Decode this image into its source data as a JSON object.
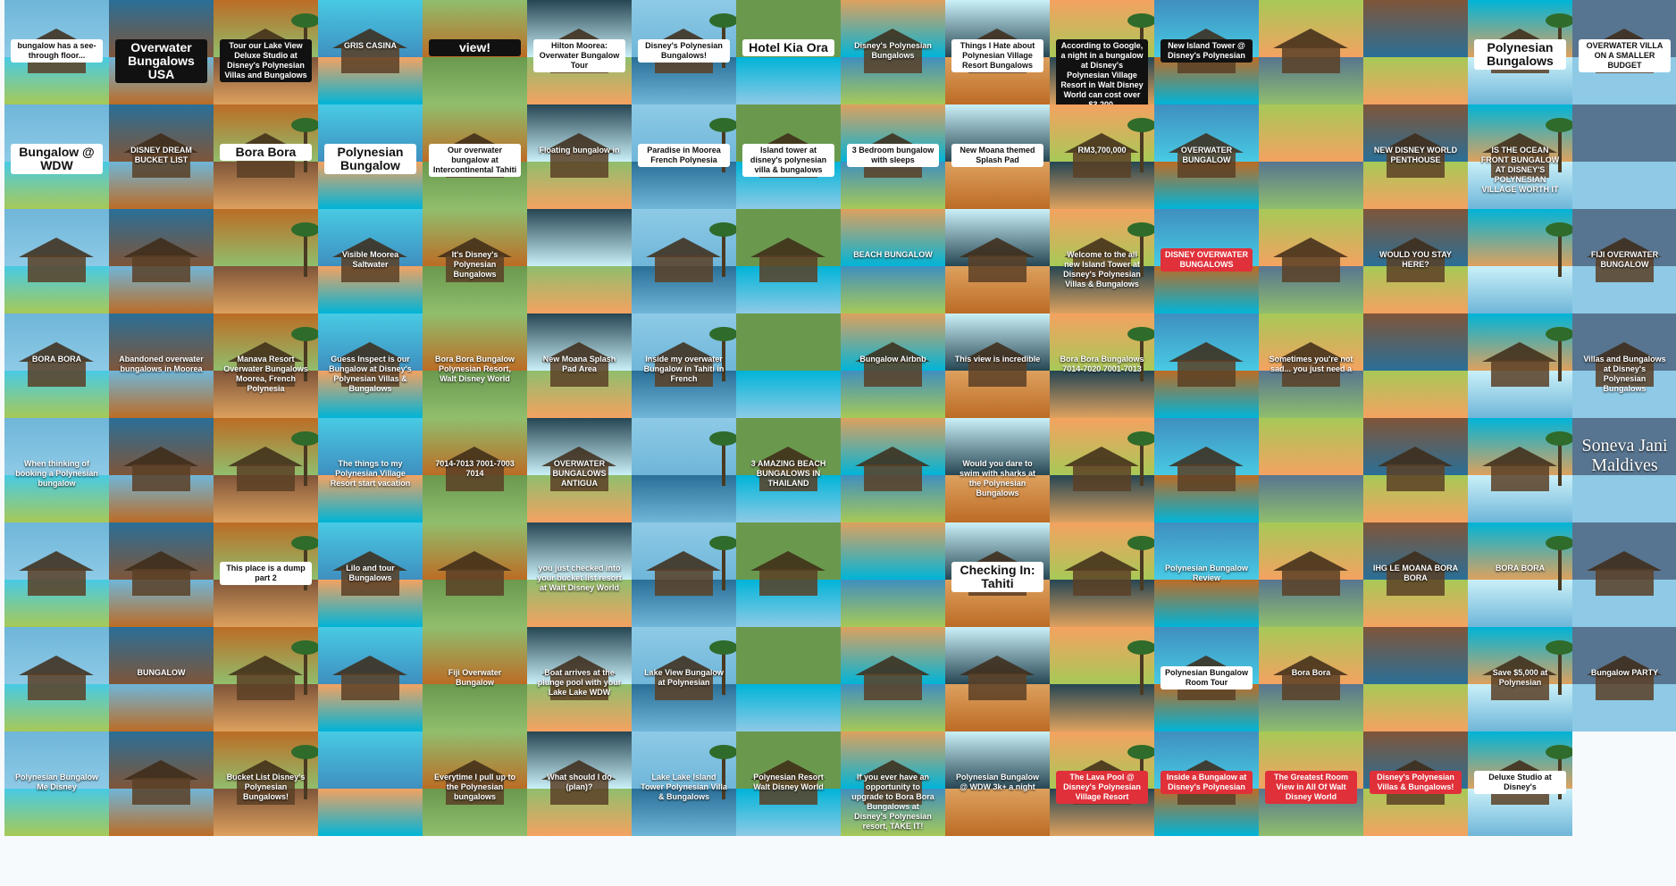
{
  "palette": [
    "#6fb6d9",
    "#3f8fbf",
    "#8ecae6",
    "#2a6f97",
    "#a7c957",
    "#6a994e",
    "#bc6c25",
    "#7f5539",
    "#dda15e",
    "#48cae4",
    "#00b4d8",
    "#caf0f8",
    "#90be6d",
    "#577590",
    "#f4a261",
    "#264653"
  ],
  "tiles": [
    {
      "caption": "bungalow has a see-through floor...",
      "style": "cap-white"
    },
    {
      "caption": "Overwater Bungalows USA",
      "style": "cap-black"
    },
    {
      "caption": "Tour our Lake View Deluxe Studio at Disney's Polynesian Villas and Bungalows",
      "style": "cap-black"
    },
    {
      "caption": "GRIS CASINA",
      "style": "cap-plain"
    },
    {
      "caption": "view!",
      "style": "cap-black"
    },
    {
      "caption": "Hilton Moorea: Overwater Bungalow Tour",
      "style": "cap-white"
    },
    {
      "caption": "Disney's Polynesian Bungalows!",
      "style": "cap-white"
    },
    {
      "caption": "Hotel Kia Ora",
      "style": "cap-white"
    },
    {
      "caption": "Disney's Polynesian Bungalows",
      "style": "cap-plain"
    },
    {
      "caption": "Things I Hate about Polynesian Village Resort Bungalows",
      "style": "cap-white"
    },
    {
      "caption": "According to Google, a night in a bungalow at Disney's Polynesian Village Resort in Walt Disney World can cost over $3,200.",
      "style": "cap-black"
    },
    {
      "caption": "New Island Tower @ Disney's Polynesian",
      "style": "cap-black"
    },
    {
      "caption": "",
      "style": "cap-plain"
    },
    {
      "caption": "",
      "style": "cap-plain"
    },
    {
      "caption": "Polynesian Bungalows",
      "style": "cap-white"
    },
    {
      "caption": "OVERWATER VILLA ON A SMALLER BUDGET",
      "style": "cap-white"
    },
    {
      "caption": "Bungalow @ WDW",
      "style": "cap-white"
    },
    {
      "caption": "DISNEY DREAM BUCKET LIST",
      "style": "cap-plain"
    },
    {
      "caption": "Bora Bora",
      "style": "cap-white"
    },
    {
      "caption": "Polynesian Bungalow",
      "style": "cap-white"
    },
    {
      "caption": "Our overwater bungalow at Intercontinental Tahiti",
      "style": "cap-white"
    },
    {
      "caption": "Floating bungalow in",
      "style": "cap-plain"
    },
    {
      "caption": "Paradise in Moorea French Polynesia",
      "style": "cap-white"
    },
    {
      "caption": "Island tower at disney's polynesian villa & bungalows",
      "style": "cap-white"
    },
    {
      "caption": "3 Bedroom bungalow with sleeps",
      "style": "cap-white"
    },
    {
      "caption": "New Moana themed Splash Pad",
      "style": "cap-white"
    },
    {
      "caption": "RM3,700,000",
      "style": "cap-plain"
    },
    {
      "caption": "OVERWATER BUNGALOW",
      "style": "cap-plain"
    },
    {
      "caption": "",
      "style": "cap-plain"
    },
    {
      "caption": "NEW DISNEY WORLD PENTHOUSE",
      "style": "cap-plain"
    },
    {
      "caption": "IS THE OCEAN FRONT BUNGALOW AT DISNEY'S POLYNESIAN VILLAGE WORTH IT",
      "style": "cap-plain"
    },
    {
      "caption": "",
      "style": "cap-plain"
    },
    {
      "caption": "",
      "style": "cap-plain"
    },
    {
      "caption": "",
      "style": "cap-plain"
    },
    {
      "caption": "",
      "style": "cap-plain"
    },
    {
      "caption": "Visible Moorea Saltwater",
      "style": "cap-plain"
    },
    {
      "caption": "It's Disney's Polynesian Bungalows",
      "style": "cap-plain"
    },
    {
      "caption": "",
      "style": "cap-plain"
    },
    {
      "caption": "",
      "style": "cap-plain"
    },
    {
      "caption": "",
      "style": "cap-plain"
    },
    {
      "caption": "BEACH BUNGALOW",
      "style": "cap-plain"
    },
    {
      "caption": "",
      "style": "cap-plain"
    },
    {
      "caption": "Welcome to the all new Island Tower at Disney's Polynesian Villas & Bungalows",
      "style": "cap-plain"
    },
    {
      "caption": "DISNEY OVERWATER BUNGALOWS",
      "style": "cap-red"
    },
    {
      "caption": "",
      "style": "cap-plain"
    },
    {
      "caption": "WOULD YOU STAY HERE?",
      "style": "cap-plain"
    },
    {
      "caption": "",
      "style": "cap-plain"
    },
    {
      "caption": "FIJI OVERWATER BUNGALOW",
      "style": "cap-plain"
    },
    {
      "caption": "BORA BORA",
      "style": "cap-plain"
    },
    {
      "caption": "Abandoned overwater bungalows in Moorea",
      "style": "cap-plain"
    },
    {
      "caption": "Manava Resort Overwater Bungalows Moorea, French Polynesia",
      "style": "cap-plain"
    },
    {
      "caption": "Guess Inspect is our Bungalow at Disney's Polynesian Villas & Bungalows",
      "style": "cap-plain"
    },
    {
      "caption": "Bora Bora Bungalow Polynesian Resort, Walt Disney World",
      "style": "cap-plain"
    },
    {
      "caption": "New Moana Splash Pad Area",
      "style": "cap-plain"
    },
    {
      "caption": "Inside my overwater Bungalow in Tahiti in French",
      "style": "cap-plain"
    },
    {
      "caption": "",
      "style": "cap-plain"
    },
    {
      "caption": "Bungalow Airbnb",
      "style": "cap-plain"
    },
    {
      "caption": "This view is incredible",
      "style": "cap-plain"
    },
    {
      "caption": "Bora Bora Bungalows 7014-7020 7001-7013",
      "style": "cap-plain"
    },
    {
      "caption": "",
      "style": "cap-plain"
    },
    {
      "caption": "Sometimes you're not sad... you just need a",
      "style": "cap-plain"
    },
    {
      "caption": "",
      "style": "cap-plain"
    },
    {
      "caption": "",
      "style": "cap-plain"
    },
    {
      "caption": "Villas and Bungalows at Disney's Polynesian Bungalows",
      "style": "cap-plain"
    },
    {
      "caption": "When thinking of booking a Polynesian bungalow",
      "style": "cap-plain"
    },
    {
      "caption": "",
      "style": "cap-plain"
    },
    {
      "caption": "",
      "style": "cap-plain"
    },
    {
      "caption": "The things to my Polynesian Village Resort start vacation",
      "style": "cap-plain"
    },
    {
      "caption": "7014-7013 7001-7003 7014",
      "style": "cap-plain"
    },
    {
      "caption": "OVERWATER BUNGALOWS ANTIGUA",
      "style": "cap-plain"
    },
    {
      "caption": "",
      "style": "cap-plain"
    },
    {
      "caption": "3 AMAZING BEACH BUNGALOWS IN THAILAND",
      "style": "cap-plain"
    },
    {
      "caption": "",
      "style": "cap-plain"
    },
    {
      "caption": "Would you dare to swim with sharks at the Polynesian Bungalows",
      "style": "cap-plain"
    },
    {
      "caption": "",
      "style": "cap-plain"
    },
    {
      "caption": "",
      "style": "cap-plain"
    },
    {
      "caption": "",
      "style": "cap-plain"
    },
    {
      "caption": "",
      "style": "cap-plain"
    },
    {
      "caption": "",
      "style": "cap-plain"
    },
    {
      "caption": "Soneva Jani Maldives",
      "style": "cap-plain"
    },
    {
      "caption": "",
      "style": "cap-plain"
    },
    {
      "caption": "",
      "style": "cap-plain"
    },
    {
      "caption": "This place is a dump part 2",
      "style": "cap-white"
    },
    {
      "caption": "Lilo and tour Bungalows",
      "style": "cap-plain"
    },
    {
      "caption": "",
      "style": "cap-plain"
    },
    {
      "caption": "you just checked into your bucket list resort at Walt Disney World",
      "style": "cap-plain"
    },
    {
      "caption": "",
      "style": "cap-plain"
    },
    {
      "caption": "",
      "style": "cap-plain"
    },
    {
      "caption": "",
      "style": "cap-plain"
    },
    {
      "caption": "Checking In: Tahiti",
      "style": "cap-white"
    },
    {
      "caption": "",
      "style": "cap-plain"
    },
    {
      "caption": "Polynesian Bungalow Review",
      "style": "cap-plain"
    },
    {
      "caption": "",
      "style": "cap-plain"
    },
    {
      "caption": "IHG LE MOANA BORA BORA",
      "style": "cap-plain"
    },
    {
      "caption": "BORA BORA",
      "style": "cap-plain"
    },
    {
      "caption": "",
      "style": "cap-plain"
    },
    {
      "caption": "",
      "style": "cap-plain"
    },
    {
      "caption": "BUNGALOW",
      "style": "cap-plain"
    },
    {
      "caption": "",
      "style": "cap-plain"
    },
    {
      "caption": "",
      "style": "cap-plain"
    },
    {
      "caption": "Fiji Overwater Bungalow",
      "style": "cap-plain"
    },
    {
      "caption": "Boat arrives at the plunge pool with your Lake Lake WDW",
      "style": "cap-plain"
    },
    {
      "caption": "Lake View Bungalow at Polynesian",
      "style": "cap-plain"
    },
    {
      "caption": "",
      "style": "cap-plain"
    },
    {
      "caption": "",
      "style": "cap-plain"
    },
    {
      "caption": "",
      "style": "cap-plain"
    },
    {
      "caption": "",
      "style": "cap-plain"
    },
    {
      "caption": "Polynesian Bungalow Room Tour",
      "style": "cap-white"
    },
    {
      "caption": "Bora Bora",
      "style": "cap-plain"
    },
    {
      "caption": "",
      "style": "cap-plain"
    },
    {
      "caption": "Save $5,000 at Polynesian",
      "style": "cap-plain"
    },
    {
      "caption": "Bungalow PARTY",
      "style": "cap-plain"
    },
    {
      "caption": "Polynesian Bungalow Me Disney",
      "style": "cap-plain"
    },
    {
      "caption": "",
      "style": "cap-plain"
    },
    {
      "caption": "Bucket List Disney's Polynesian Bungalows!",
      "style": "cap-plain"
    },
    {
      "caption": "",
      "style": "cap-plain"
    },
    {
      "caption": "Everytime I pull up to the Polynesian bungalows",
      "style": "cap-plain"
    },
    {
      "caption": "What should I do (plan)?",
      "style": "cap-plain"
    },
    {
      "caption": "Lake Lake Island Tower Polynesian Villa & Bungalows",
      "style": "cap-plain"
    },
    {
      "caption": "Polynesian Resort Walt Disney World",
      "style": "cap-plain"
    },
    {
      "caption": "If you ever have an opportunity to upgrade to Bora Bora Bungalows at Disney's Polynesian resort, TAKE IT!",
      "style": "cap-plain"
    },
    {
      "caption": "Polynesian Bungalow @ WDW 3k+ a night",
      "style": "cap-plain"
    },
    {
      "caption": "The Lava Pool @ Disney's Polynesian Village Resort",
      "style": "cap-red"
    },
    {
      "caption": "Inside a Bungalow at Disney's Polynesian",
      "style": "cap-red"
    },
    {
      "caption": "The Greatest Room View in All Of Walt Disney World",
      "style": "cap-red"
    },
    {
      "caption": "Disney's Polynesian Villas & Bungalows!",
      "style": "cap-red"
    },
    {
      "caption": "Deluxe Studio at Disney's",
      "style": "cap-white"
    }
  ]
}
